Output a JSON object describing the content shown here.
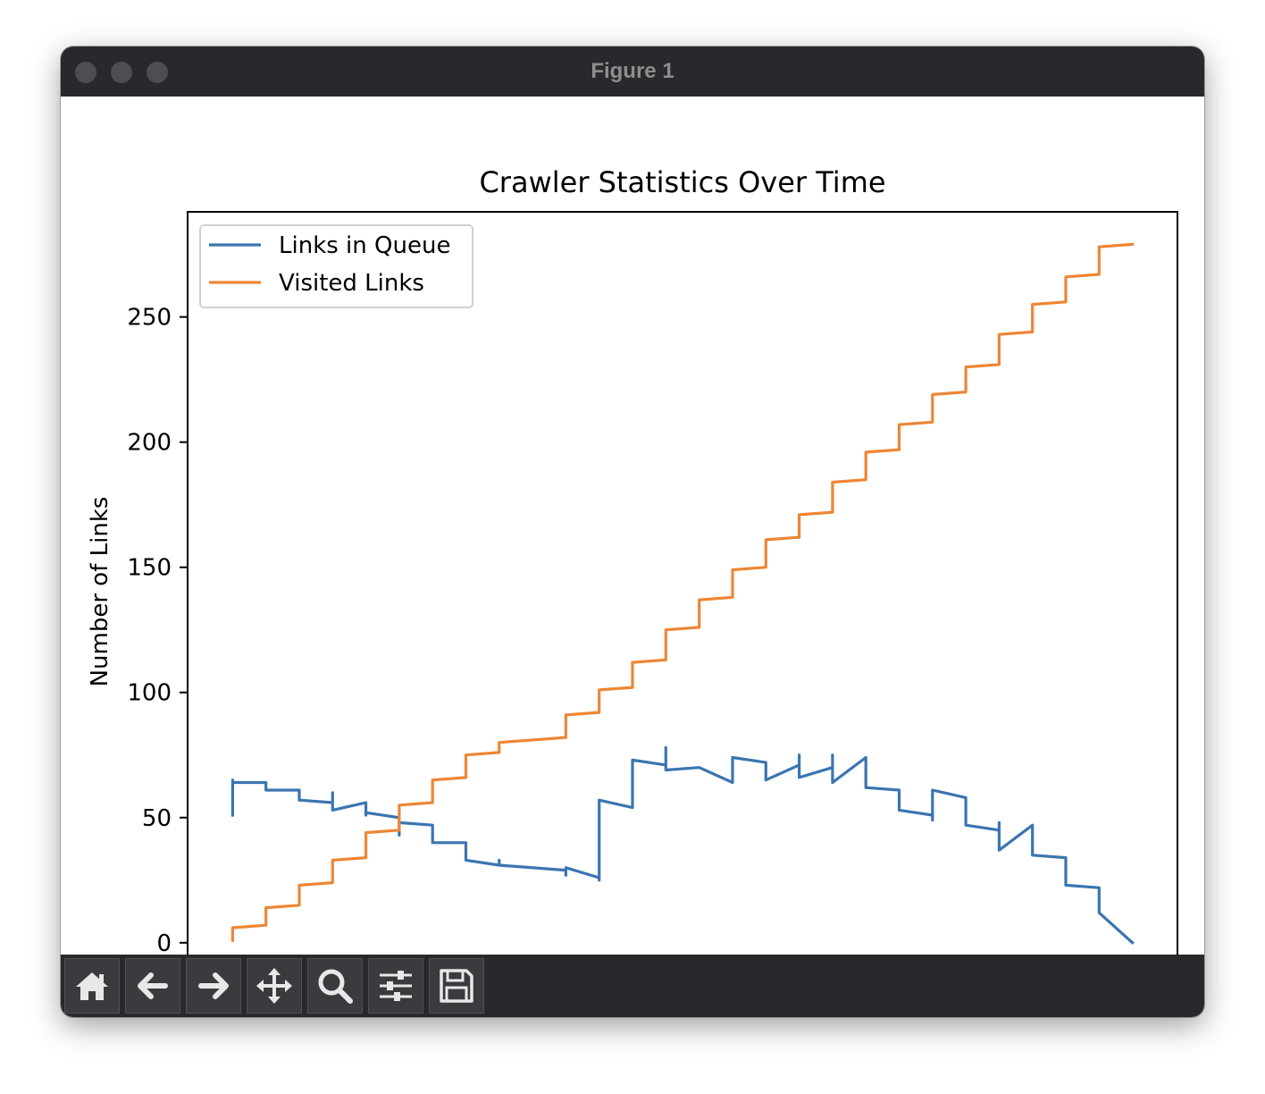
{
  "window": {
    "title": "Figure 1"
  },
  "toolbar": {
    "buttons": [
      {
        "name": "home-button",
        "icon": "home-icon"
      },
      {
        "name": "back-button",
        "icon": "arrow-left-icon"
      },
      {
        "name": "forward-button",
        "icon": "arrow-right-icon"
      },
      {
        "name": "pan-button",
        "icon": "move-icon"
      },
      {
        "name": "zoom-button",
        "icon": "magnifier-icon"
      },
      {
        "name": "configure-subplots-button",
        "icon": "sliders-icon"
      },
      {
        "name": "save-button",
        "icon": "floppy-disk-icon"
      }
    ]
  },
  "colors": {
    "titlebar": "#28292c",
    "series_queue": "#3a75b0",
    "series_visited": "#ee8634"
  },
  "chart_data": {
    "type": "line",
    "title": "Crawler Statistics Over Time",
    "xlabel": "",
    "ylabel": "Number of Links",
    "xlim": [
      -1.35,
      28.35
    ],
    "ylim": [
      -14,
      292
    ],
    "yticks": [
      0,
      50,
      100,
      150,
      200,
      250
    ],
    "xticks_visible": false,
    "legend_location": "upper left",
    "series": [
      {
        "name": "Links in Queue",
        "color": "#3a75b0",
        "x": [
          0,
          0,
          0,
          1,
          1,
          2,
          2,
          3,
          3,
          3,
          4,
          4,
          4,
          5,
          5,
          5,
          6,
          6,
          7,
          7,
          8,
          8,
          8,
          10,
          10,
          10,
          11,
          11,
          11,
          12,
          12,
          13,
          13,
          13,
          14,
          15,
          15,
          16,
          16,
          17,
          17,
          17,
          18,
          18,
          18,
          19,
          19,
          20,
          20,
          21,
          21,
          21,
          22,
          22,
          23,
          23,
          23,
          24,
          24,
          25,
          25,
          26,
          26,
          27
        ],
        "y": [
          51,
          65,
          64,
          64,
          61,
          61,
          57,
          56,
          60,
          53,
          56,
          51,
          52,
          50,
          43,
          48,
          47,
          40,
          40,
          33,
          31,
          33,
          31,
          29,
          27,
          30,
          26,
          25,
          57,
          54,
          73,
          71,
          78,
          69,
          70,
          64,
          74,
          72,
          65,
          71,
          75,
          66,
          70,
          75,
          64,
          74,
          62,
          61,
          53,
          51,
          49,
          61,
          58,
          47,
          45,
          48,
          37,
          47,
          35,
          34,
          23,
          22,
          12,
          0
        ],
        "y_levels_note": null
      },
      {
        "name": "Visited Links",
        "color": "#ee8634",
        "x": [
          0,
          0,
          1,
          1,
          2,
          2,
          3,
          3,
          4,
          4,
          5,
          5,
          6,
          6,
          7,
          7,
          8,
          8,
          10,
          10,
          11,
          11,
          12,
          12,
          13,
          13,
          14,
          14,
          15,
          15,
          16,
          16,
          17,
          17,
          18,
          18,
          19,
          19,
          20,
          20,
          21,
          21,
          22,
          22,
          23,
          23,
          24,
          24,
          25,
          25,
          26,
          26,
          27
        ],
        "y": [
          1,
          6,
          7,
          14,
          15,
          23,
          24,
          33,
          34,
          44,
          45,
          55,
          56,
          65,
          66,
          75,
          76,
          80,
          82,
          91,
          92,
          101,
          102,
          112,
          113,
          125,
          126,
          137,
          138,
          149,
          150,
          161,
          162,
          171,
          172,
          184,
          185,
          196,
          197,
          207,
          208,
          219,
          220,
          230,
          231,
          243,
          244,
          255,
          256,
          266,
          267,
          278,
          279
        ]
      }
    ]
  }
}
